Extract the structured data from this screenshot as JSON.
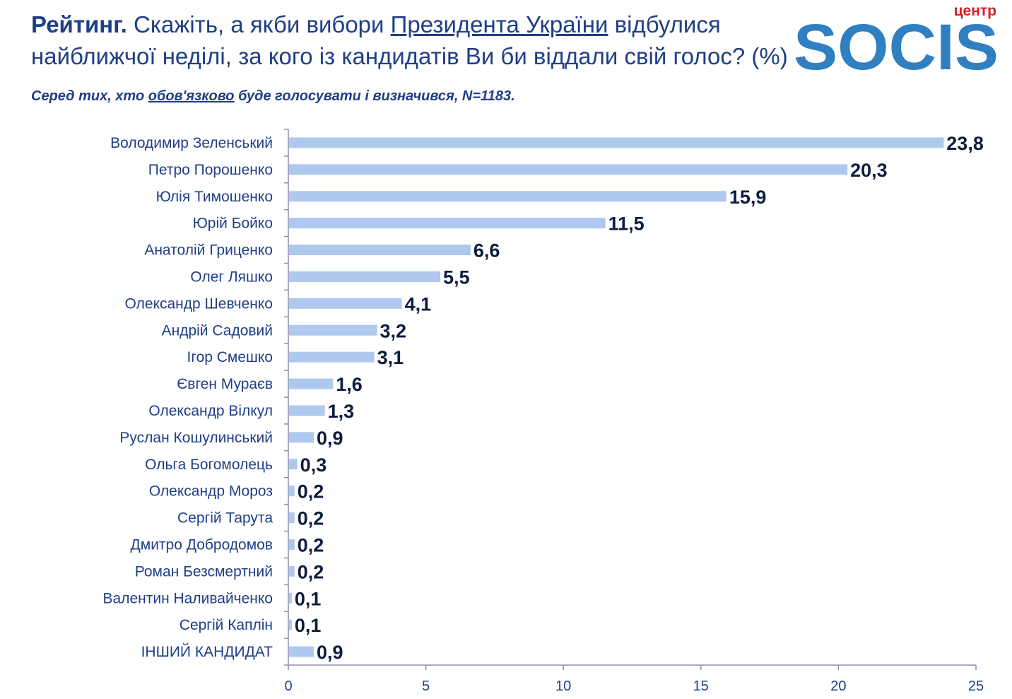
{
  "header": {
    "title_bold": "Рейтинг.",
    "title_pre": " Скажіть, а якби вибори ",
    "title_underlined": "Президента України",
    "title_post": " відбулися найближчої неділі, за кого із кандидатів Ви би віддали свій голос? (%)",
    "sub_pre": " Серед тих, хто ",
    "sub_underlined": "обов'язково",
    "sub_post": " буде голосувати і визначився, N=1183."
  },
  "logo": {
    "top_text": "центр",
    "brand_text": "SOCIS",
    "top_color": "#d32027",
    "brand_color": "#2f7fc1"
  },
  "colors": {
    "bar": "#aec8ee",
    "axis": "#8a8fb3",
    "text": "#1f3f86",
    "value": "#0d1c3f"
  },
  "chart_data": {
    "type": "bar",
    "orientation": "horizontal",
    "categories": [
      "Володимир Зеленський",
      "Петро Порошенко",
      "Юлія Тимошенко",
      "Юрій Бойко",
      "Анатолій Гриценко",
      "Олег Ляшко",
      "Олександр Шевченко",
      "Андрій Садовий",
      "Ігор Смешко",
      "Євген Мураєв",
      "Олександр Вілкул",
      "Руслан Кошулинський",
      "Ольга Богомолець",
      "Олександр Мороз",
      "Сергій Тарута",
      "Дмитро Добродомов",
      "Роман Безсмертний",
      "Валентин Наливайченко",
      "Сергій Каплін",
      "ІНШИЙ КАНДИДАТ"
    ],
    "values": [
      23.8,
      20.3,
      15.9,
      11.5,
      6.6,
      5.5,
      4.1,
      3.2,
      3.1,
      1.6,
      1.3,
      0.9,
      0.3,
      0.2,
      0.2,
      0.2,
      0.2,
      0.1,
      0.1,
      0.9
    ],
    "value_labels": [
      "23,8",
      "20,3",
      "15,9",
      "11,5",
      "6,6",
      "5,5",
      "4,1",
      "3,2",
      "3,1",
      "1,6",
      "1,3",
      "0,9",
      "0,3",
      "0,2",
      "0,2",
      "0,2",
      "0,2",
      "0,1",
      "0,1",
      "0,9"
    ],
    "xlim": [
      0,
      25
    ],
    "xticks": [
      0,
      5,
      10,
      15,
      20,
      25
    ],
    "grid": false,
    "legend": "none"
  }
}
